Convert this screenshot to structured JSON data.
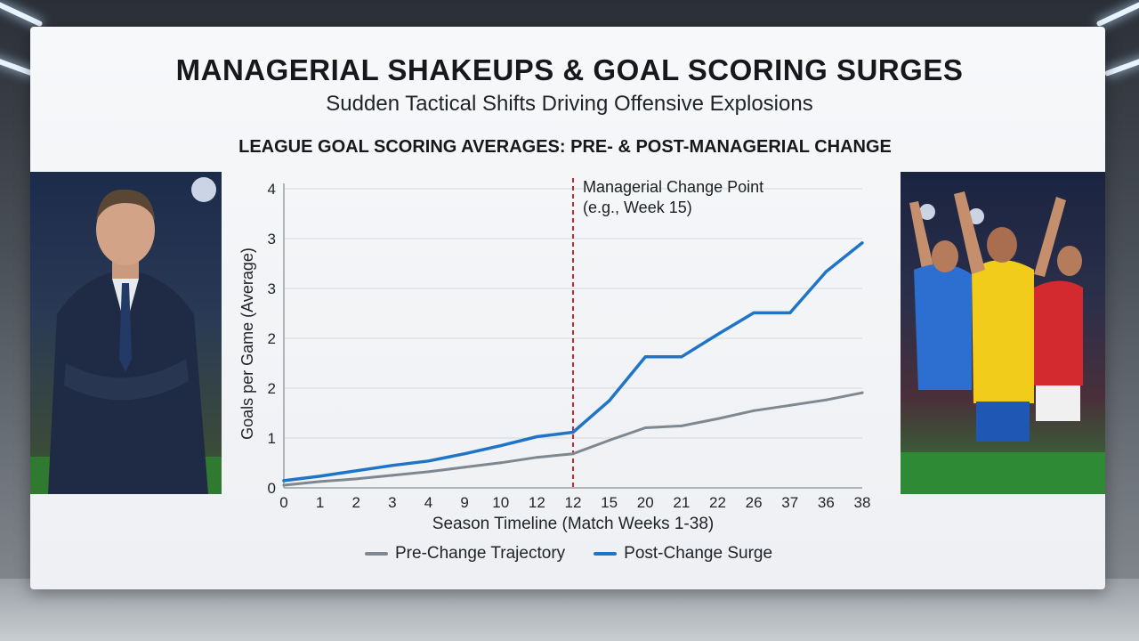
{
  "header": {
    "title": "MANAGERIAL SHAKEUPS & GOAL SCORING SURGES",
    "subtitle": "Sudden Tactical Shifts Driving Offensive Explosions"
  },
  "chart_data": {
    "type": "line",
    "title": "LEAGUE GOAL SCORING AVERAGES: PRE- & POST-MANAGERIAL CHANGE",
    "xlabel": "Season Timeline (Match Weeks 1-38)",
    "ylabel": "Goals per Game (Average)",
    "categories": [
      "0",
      "1",
      "2",
      "3",
      "4",
      "9",
      "10",
      "12",
      "12",
      "15",
      "20",
      "21",
      "22",
      "26",
      "37",
      "36",
      "38"
    ],
    "y_tick_labels": [
      "0",
      "1",
      "2",
      "2",
      "3",
      "3",
      "4"
    ],
    "ylim": [
      0,
      3
    ],
    "grid": true,
    "legend_position": "bottom",
    "series": [
      {
        "name": "Pre-Change Trajectory",
        "color": "#7f8890",
        "values": [
          0.03,
          0.07,
          0.1,
          0.14,
          0.18,
          0.23,
          0.28,
          0.34,
          0.38,
          0.53,
          0.67,
          0.69,
          0.77,
          0.86,
          0.92,
          0.98,
          1.06
        ]
      },
      {
        "name": "Post-Change Surge",
        "color": "#1f74c8",
        "values": [
          0.08,
          0.13,
          0.19,
          0.25,
          0.3,
          0.38,
          0.47,
          0.57,
          0.62,
          0.97,
          1.46,
          1.46,
          1.71,
          1.95,
          1.95,
          2.41,
          2.73
        ]
      }
    ],
    "annotation": {
      "line1": "Managerial Change Point",
      "line2": "(e.g., Week 15)",
      "x_index": 8,
      "color": "#c8282d"
    }
  }
}
